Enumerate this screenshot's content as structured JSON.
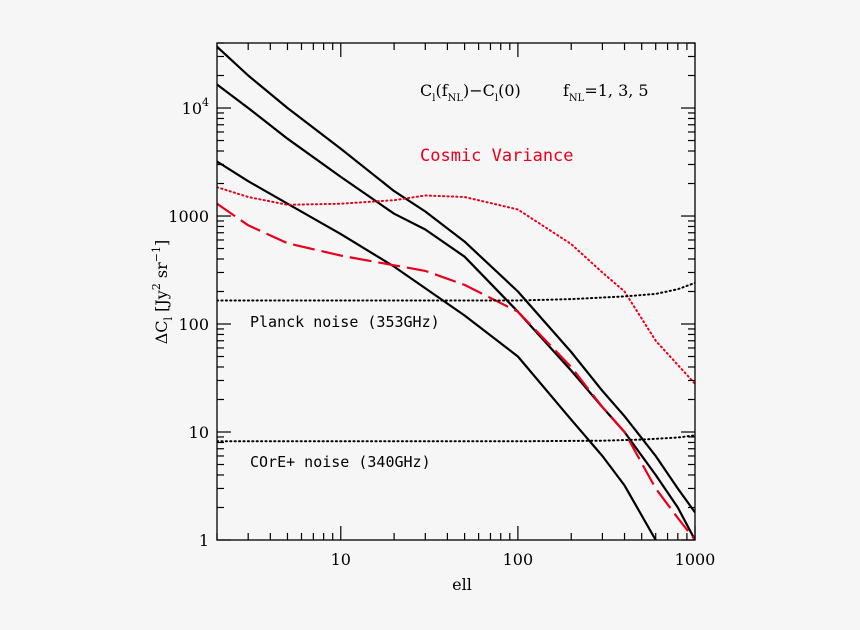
{
  "chart_data": {
    "type": "line",
    "xscale": "log",
    "yscale": "log",
    "xlim": [
      2,
      1000
    ],
    "ylim": [
      1,
      40000
    ],
    "xlabel": "ell",
    "ylabel_parts": {
      "delta": "ΔC",
      "sub": "l",
      "open": " [Jy",
      "sup1": "2",
      "mid": " sr",
      "sup2": "−1",
      "close": "]"
    },
    "xticks": [
      {
        "value": 10,
        "label": "10"
      },
      {
        "value": 100,
        "label": "100"
      },
      {
        "value": 1000,
        "label": "1000"
      }
    ],
    "yticks": [
      {
        "value": 1,
        "label": "1"
      },
      {
        "value": 10,
        "label": "10"
      },
      {
        "value": 100,
        "label": "100"
      },
      {
        "value": 1000,
        "label": "1000"
      },
      {
        "value": 10000,
        "label_base": "10",
        "label_sup": "4"
      }
    ],
    "annotations": {
      "formula": {
        "p1": "C",
        "s1": "l",
        "p2": "(f",
        "s2": "NL",
        "p3": ")−C",
        "s3": "l",
        "p4": "(0)"
      },
      "fnl": {
        "p1": "f",
        "s1": "NL",
        "p2": "=1, 3, 5"
      },
      "cosmic": "Cosmic Variance",
      "planck": "Planck noise (353GHz)",
      "core": "COrE+ noise (340GHz)"
    },
    "series": [
      {
        "style": "solid",
        "color": "#000000",
        "points": [
          [
            2,
            3200
          ],
          [
            3,
            2100
          ],
          [
            5,
            1300
          ],
          [
            10,
            680
          ],
          [
            20,
            340
          ],
          [
            50,
            120
          ],
          [
            100,
            50
          ],
          [
            200,
            13
          ],
          [
            300,
            6
          ],
          [
            400,
            3.2
          ],
          [
            600,
            1
          ]
        ]
      },
      {
        "style": "solid",
        "color": "#000000",
        "points": [
          [
            2,
            16500
          ],
          [
            3,
            10000
          ],
          [
            5,
            5200
          ],
          [
            10,
            2300
          ],
          [
            20,
            1050
          ],
          [
            30,
            750
          ],
          [
            50,
            420
          ],
          [
            100,
            130
          ],
          [
            200,
            37
          ],
          [
            300,
            17
          ],
          [
            400,
            10
          ],
          [
            600,
            4
          ],
          [
            800,
            2
          ],
          [
            1000,
            1
          ]
        ]
      },
      {
        "style": "solid",
        "color": "#000000",
        "points": [
          [
            2,
            37000
          ],
          [
            3,
            20000
          ],
          [
            5,
            10000
          ],
          [
            10,
            4200
          ],
          [
            20,
            1700
          ],
          [
            30,
            1100
          ],
          [
            50,
            580
          ],
          [
            100,
            200
          ],
          [
            200,
            55
          ],
          [
            300,
            24
          ],
          [
            400,
            14
          ],
          [
            600,
            6
          ],
          [
            800,
            3
          ],
          [
            1000,
            1.8
          ]
        ]
      },
      {
        "style": "dashed",
        "color": "#e8001c",
        "points": [
          [
            2,
            1300
          ],
          [
            3,
            820
          ],
          [
            5,
            560
          ],
          [
            10,
            430
          ],
          [
            20,
            350
          ],
          [
            30,
            310
          ],
          [
            50,
            230
          ],
          [
            100,
            130
          ],
          [
            200,
            40
          ],
          [
            300,
            17
          ],
          [
            400,
            10
          ],
          [
            600,
            3
          ],
          [
            800,
            1.6
          ],
          [
            1000,
            1
          ]
        ]
      },
      {
        "style": "dotted",
        "color": "#e8001c",
        "points": [
          [
            2,
            1850
          ],
          [
            3,
            1500
          ],
          [
            5,
            1270
          ],
          [
            10,
            1300
          ],
          [
            20,
            1400
          ],
          [
            30,
            1550
          ],
          [
            50,
            1500
          ],
          [
            100,
            1150
          ],
          [
            200,
            550
          ],
          [
            300,
            300
          ],
          [
            400,
            200
          ],
          [
            600,
            70
          ],
          [
            1000,
            28
          ]
        ]
      },
      {
        "style": "dotted",
        "color": "#000000",
        "points": [
          [
            2,
            165
          ],
          [
            10,
            165
          ],
          [
            100,
            165
          ],
          [
            200,
            170
          ],
          [
            400,
            180
          ],
          [
            600,
            190
          ],
          [
            800,
            210
          ],
          [
            1000,
            240
          ]
        ]
      },
      {
        "style": "dotted",
        "color": "#000000",
        "points": [
          [
            2,
            8.2
          ],
          [
            10,
            8.2
          ],
          [
            100,
            8.2
          ],
          [
            300,
            8.3
          ],
          [
            500,
            8.5
          ],
          [
            800,
            8.9
          ],
          [
            1000,
            9.3
          ]
        ]
      }
    ]
  }
}
